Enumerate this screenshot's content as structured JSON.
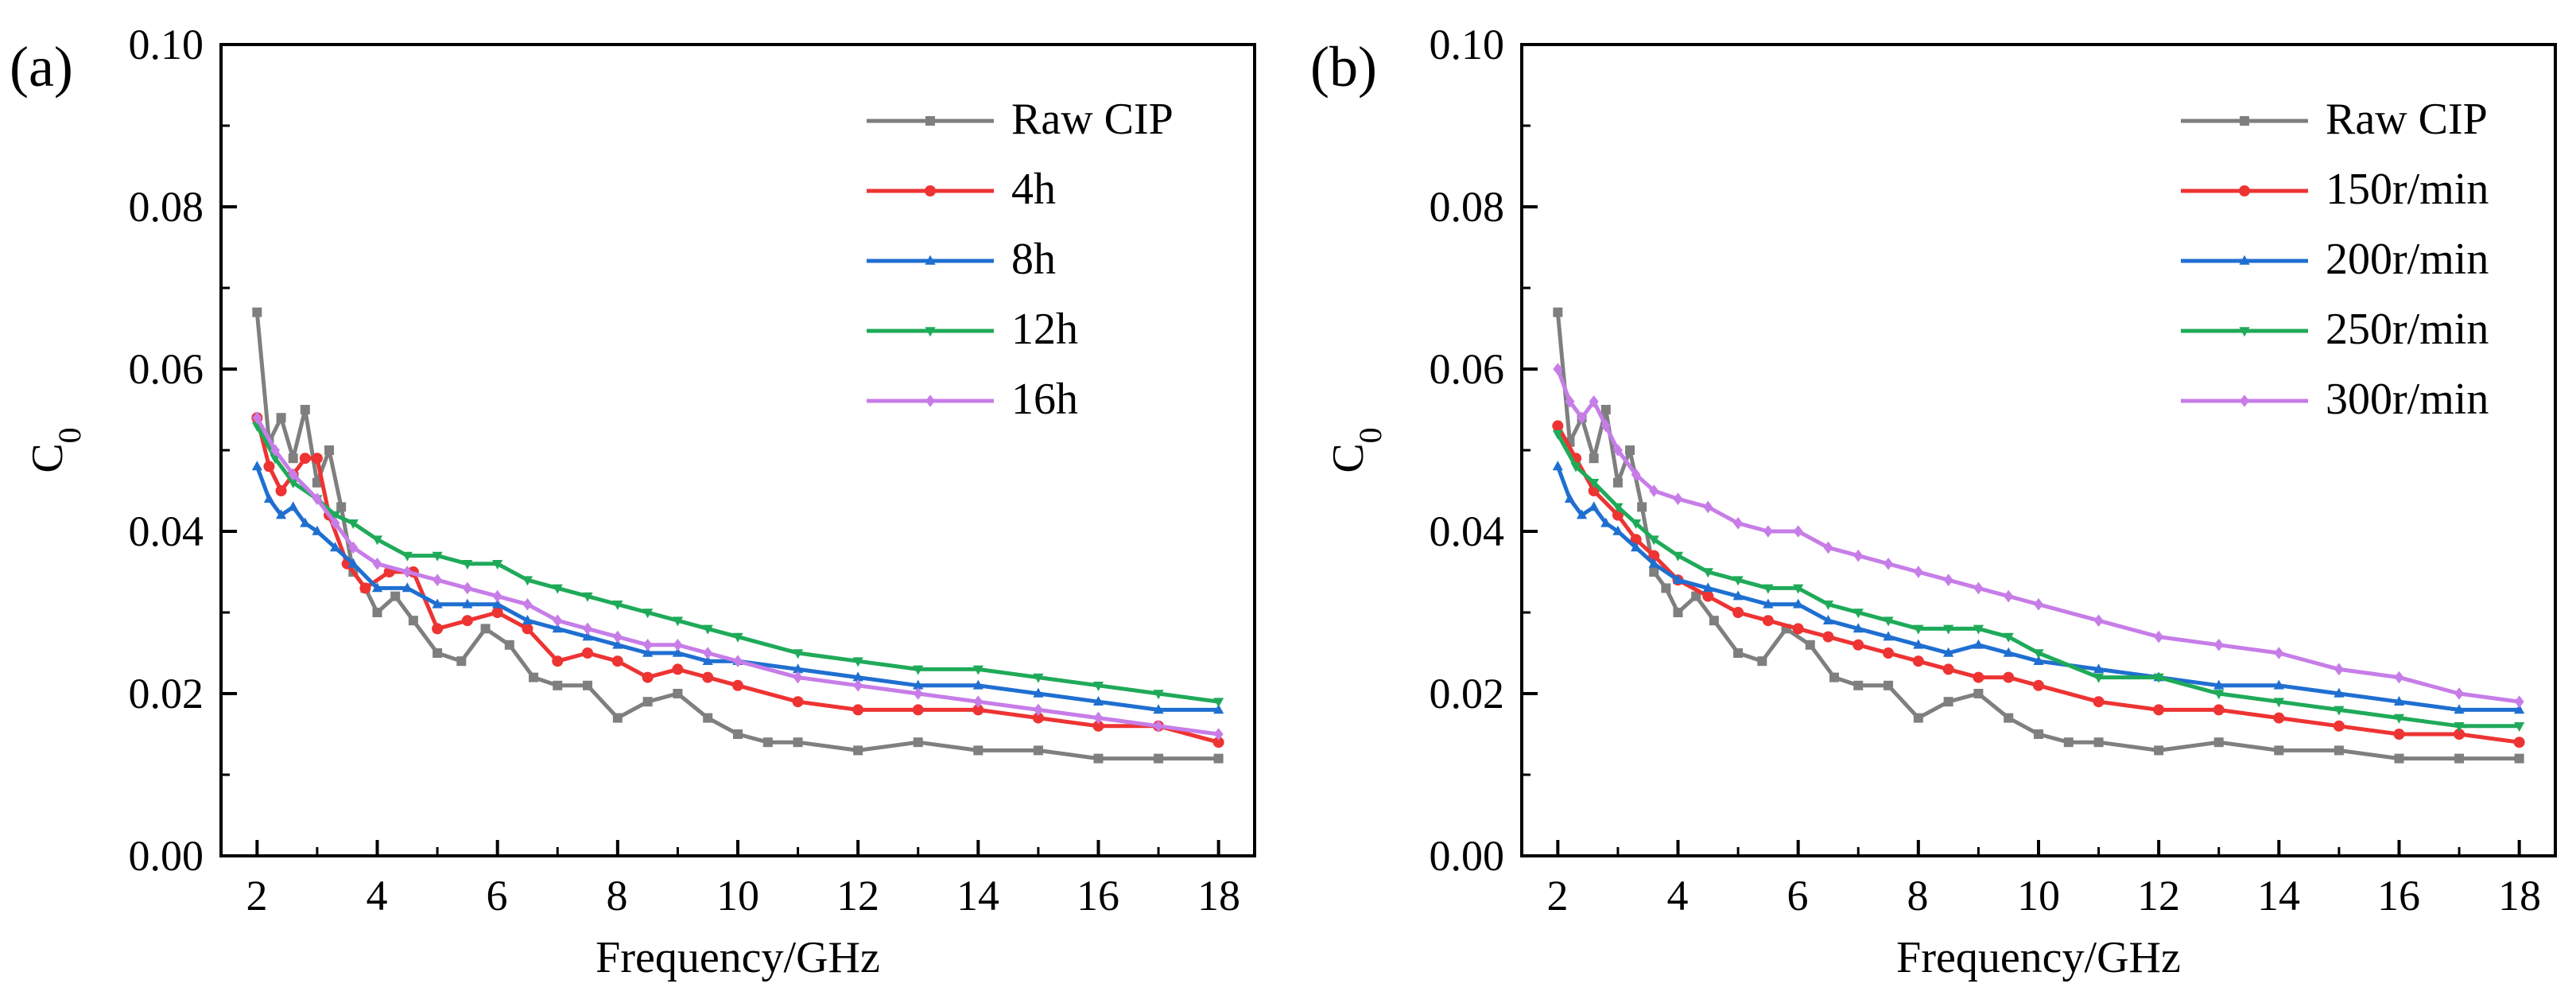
{
  "chart_data": [
    {
      "type": "line",
      "panel_label": "(a)",
      "xlabel": "Frequency/GHz",
      "ylabel_main": "C",
      "ylabel_sub": "0",
      "xlim": [
        1.4,
        18.6
      ],
      "ylim": [
        0,
        0.1
      ],
      "xticks": [
        2,
        4,
        6,
        8,
        10,
        12,
        14,
        16,
        18
      ],
      "yticks": [
        0,
        0.02,
        0.04,
        0.06,
        0.08,
        0.1
      ],
      "xtick_labels": [
        "2",
        "4",
        "6",
        "8",
        "10",
        "12",
        "14",
        "16",
        "18"
      ],
      "ytick_labels": [
        "0.00",
        "0.02",
        "0.04",
        "0.06",
        "0.08",
        "0.10"
      ],
      "legend_position": "top-right",
      "series": [
        {
          "name": "Raw CIP",
          "color": "#7f7f7f",
          "marker": "square",
          "x": [
            2,
            2.2,
            2.4,
            2.6,
            2.8,
            3.0,
            3.2,
            3.4,
            3.6,
            3.8,
            4.0,
            4.3,
            4.6,
            5.0,
            5.4,
            5.8,
            6.2,
            6.6,
            7.0,
            7.5,
            8.0,
            8.5,
            9.0,
            9.5,
            10.0,
            10.5,
            11.0,
            12.0,
            13.0,
            14.0,
            15.0,
            16.0,
            17.0,
            18.0
          ],
          "values": [
            0.067,
            0.051,
            0.054,
            0.049,
            0.055,
            0.046,
            0.05,
            0.043,
            0.035,
            0.033,
            0.03,
            0.032,
            0.029,
            0.025,
            0.024,
            0.028,
            0.026,
            0.022,
            0.021,
            0.021,
            0.017,
            0.019,
            0.02,
            0.017,
            0.015,
            0.014,
            0.014,
            0.013,
            0.014,
            0.013,
            0.013,
            0.012,
            0.012,
            0.012
          ]
        },
        {
          "name": "4h",
          "color": "#ee3333",
          "marker": "circle",
          "x": [
            2,
            2.2,
            2.4,
            2.6,
            2.8,
            3.0,
            3.2,
            3.5,
            3.8,
            4.2,
            4.6,
            5.0,
            5.5,
            6.0,
            6.5,
            7.0,
            7.5,
            8.0,
            8.5,
            9.0,
            9.5,
            10.0,
            11.0,
            12.0,
            13.0,
            14.0,
            15.0,
            16.0,
            17.0,
            18.0
          ],
          "values": [
            0.054,
            0.048,
            0.045,
            0.047,
            0.049,
            0.049,
            0.042,
            0.036,
            0.033,
            0.035,
            0.035,
            0.028,
            0.029,
            0.03,
            0.028,
            0.024,
            0.025,
            0.024,
            0.022,
            0.023,
            0.022,
            0.021,
            0.019,
            0.018,
            0.018,
            0.018,
            0.017,
            0.016,
            0.016,
            0.014
          ]
        },
        {
          "name": "8h",
          "color": "#1f6fd1",
          "marker": "triangle-up",
          "x": [
            2,
            2.2,
            2.4,
            2.6,
            2.8,
            3.0,
            3.3,
            3.6,
            4.0,
            4.5,
            5.0,
            5.5,
            6.0,
            6.5,
            7.0,
            7.5,
            8.0,
            8.5,
            9.0,
            9.5,
            10.0,
            11.0,
            12.0,
            13.0,
            14.0,
            15.0,
            16.0,
            17.0,
            18.0
          ],
          "values": [
            0.048,
            0.044,
            0.042,
            0.043,
            0.041,
            0.04,
            0.038,
            0.036,
            0.033,
            0.033,
            0.031,
            0.031,
            0.031,
            0.029,
            0.028,
            0.027,
            0.026,
            0.025,
            0.025,
            0.024,
            0.024,
            0.023,
            0.022,
            0.021,
            0.021,
            0.02,
            0.019,
            0.018,
            0.018
          ]
        },
        {
          "name": "12h",
          "color": "#1faa59",
          "marker": "triangle-down",
          "x": [
            2,
            2.3,
            2.6,
            3.0,
            3.3,
            3.6,
            4.0,
            4.5,
            5.0,
            5.5,
            6.0,
            6.5,
            7.0,
            7.5,
            8.0,
            8.5,
            9.0,
            9.5,
            10.0,
            11.0,
            12.0,
            13.0,
            14.0,
            15.0,
            16.0,
            17.0,
            18.0
          ],
          "values": [
            0.053,
            0.049,
            0.046,
            0.044,
            0.042,
            0.041,
            0.039,
            0.037,
            0.037,
            0.036,
            0.036,
            0.034,
            0.033,
            0.032,
            0.031,
            0.03,
            0.029,
            0.028,
            0.027,
            0.025,
            0.024,
            0.023,
            0.023,
            0.022,
            0.021,
            0.02,
            0.019
          ]
        },
        {
          "name": "16h",
          "color": "#c77de8",
          "marker": "diamond",
          "x": [
            2,
            2.3,
            2.6,
            3.0,
            3.3,
            3.6,
            4.0,
            4.5,
            5.0,
            5.5,
            6.0,
            6.5,
            7.0,
            7.5,
            8.0,
            8.5,
            9.0,
            9.5,
            10.0,
            11.0,
            12.0,
            13.0,
            14.0,
            15.0,
            16.0,
            17.0,
            18.0
          ],
          "values": [
            0.054,
            0.05,
            0.047,
            0.044,
            0.041,
            0.038,
            0.036,
            0.035,
            0.034,
            0.033,
            0.032,
            0.031,
            0.029,
            0.028,
            0.027,
            0.026,
            0.026,
            0.025,
            0.024,
            0.022,
            0.021,
            0.02,
            0.019,
            0.018,
            0.017,
            0.016,
            0.015
          ]
        }
      ]
    },
    {
      "type": "line",
      "panel_label": "(b)",
      "xlabel": "Frequency/GHz",
      "ylabel_main": "C",
      "ylabel_sub": "0",
      "xlim": [
        1.4,
        18.6
      ],
      "ylim": [
        0,
        0.1
      ],
      "xticks": [
        2,
        4,
        6,
        8,
        10,
        12,
        14,
        16,
        18
      ],
      "yticks": [
        0,
        0.02,
        0.04,
        0.06,
        0.08,
        0.1
      ],
      "xtick_labels": [
        "2",
        "4",
        "6",
        "8",
        "10",
        "12",
        "14",
        "16",
        "18"
      ],
      "ytick_labels": [
        "0.00",
        "0.02",
        "0.04",
        "0.06",
        "0.08",
        "0.10"
      ],
      "legend_position": "top-right",
      "series": [
        {
          "name": "Raw CIP",
          "color": "#7f7f7f",
          "marker": "square",
          "x": [
            2,
            2.2,
            2.4,
            2.6,
            2.8,
            3.0,
            3.2,
            3.4,
            3.6,
            3.8,
            4.0,
            4.3,
            4.6,
            5.0,
            5.4,
            5.8,
            6.2,
            6.6,
            7.0,
            7.5,
            8.0,
            8.5,
            9.0,
            9.5,
            10.0,
            10.5,
            11.0,
            12.0,
            13.0,
            14.0,
            15.0,
            16.0,
            17.0,
            18.0
          ],
          "values": [
            0.067,
            0.051,
            0.054,
            0.049,
            0.055,
            0.046,
            0.05,
            0.043,
            0.035,
            0.033,
            0.03,
            0.032,
            0.029,
            0.025,
            0.024,
            0.028,
            0.026,
            0.022,
            0.021,
            0.021,
            0.017,
            0.019,
            0.02,
            0.017,
            0.015,
            0.014,
            0.014,
            0.013,
            0.014,
            0.013,
            0.013,
            0.012,
            0.012,
            0.012
          ]
        },
        {
          "name": "150r/min",
          "color": "#ee3333",
          "marker": "circle",
          "x": [
            2,
            2.3,
            2.6,
            3.0,
            3.3,
            3.6,
            4.0,
            4.5,
            5.0,
            5.5,
            6.0,
            6.5,
            7.0,
            7.5,
            8.0,
            8.5,
            9.0,
            9.5,
            10.0,
            11.0,
            12.0,
            13.0,
            14.0,
            15.0,
            16.0,
            17.0,
            18.0
          ],
          "values": [
            0.053,
            0.049,
            0.045,
            0.042,
            0.039,
            0.037,
            0.034,
            0.032,
            0.03,
            0.029,
            0.028,
            0.027,
            0.026,
            0.025,
            0.024,
            0.023,
            0.022,
            0.022,
            0.021,
            0.019,
            0.018,
            0.018,
            0.017,
            0.016,
            0.015,
            0.015,
            0.014
          ]
        },
        {
          "name": "200r/min",
          "color": "#1f6fd1",
          "marker": "triangle-up",
          "x": [
            2,
            2.2,
            2.4,
            2.6,
            2.8,
            3.0,
            3.3,
            3.6,
            4.0,
            4.5,
            5.0,
            5.5,
            6.0,
            6.5,
            7.0,
            7.5,
            8.0,
            8.5,
            9.0,
            9.5,
            10.0,
            11.0,
            12.0,
            13.0,
            14.0,
            15.0,
            16.0,
            17.0,
            18.0
          ],
          "values": [
            0.048,
            0.044,
            0.042,
            0.043,
            0.041,
            0.04,
            0.038,
            0.036,
            0.034,
            0.033,
            0.032,
            0.031,
            0.031,
            0.029,
            0.028,
            0.027,
            0.026,
            0.025,
            0.026,
            0.025,
            0.024,
            0.023,
            0.022,
            0.021,
            0.021,
            0.02,
            0.019,
            0.018,
            0.018
          ]
        },
        {
          "name": "250r/min",
          "color": "#1faa59",
          "marker": "triangle-down",
          "x": [
            2,
            2.3,
            2.6,
            3.0,
            3.3,
            3.6,
            4.0,
            4.5,
            5.0,
            5.5,
            6.0,
            6.5,
            7.0,
            7.5,
            8.0,
            8.5,
            9.0,
            9.5,
            10.0,
            11.0,
            12.0,
            13.0,
            14.0,
            15.0,
            16.0,
            17.0,
            18.0
          ],
          "values": [
            0.052,
            0.048,
            0.046,
            0.043,
            0.041,
            0.039,
            0.037,
            0.035,
            0.034,
            0.033,
            0.033,
            0.031,
            0.03,
            0.029,
            0.028,
            0.028,
            0.028,
            0.027,
            0.025,
            0.022,
            0.022,
            0.02,
            0.019,
            0.018,
            0.017,
            0.016,
            0.016
          ]
        },
        {
          "name": "300r/min",
          "color": "#c77de8",
          "marker": "diamond",
          "x": [
            2,
            2.2,
            2.4,
            2.6,
            2.8,
            3.0,
            3.3,
            3.6,
            4.0,
            4.5,
            5.0,
            5.5,
            6.0,
            6.5,
            7.0,
            7.5,
            8.0,
            8.5,
            9.0,
            9.5,
            10.0,
            11.0,
            12.0,
            13.0,
            14.0,
            15.0,
            16.0,
            17.0,
            18.0
          ],
          "values": [
            0.06,
            0.056,
            0.054,
            0.056,
            0.053,
            0.05,
            0.047,
            0.045,
            0.044,
            0.043,
            0.041,
            0.04,
            0.04,
            0.038,
            0.037,
            0.036,
            0.035,
            0.034,
            0.033,
            0.032,
            0.031,
            0.029,
            0.027,
            0.026,
            0.025,
            0.023,
            0.022,
            0.02,
            0.019
          ]
        }
      ]
    }
  ]
}
